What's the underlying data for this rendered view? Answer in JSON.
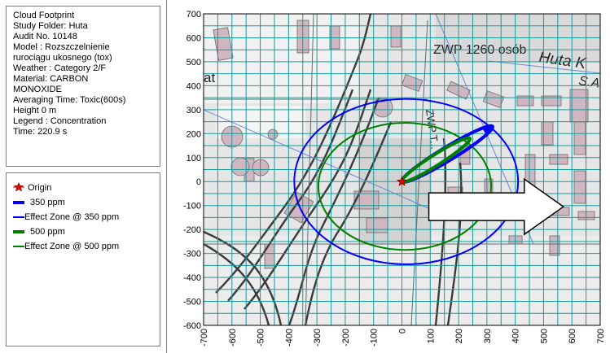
{
  "info": {
    "lines": [
      "Cloud Footprint",
      "Study Folder: Huta",
      "Audit No. 10148",
      "Model : Rozszczelnienie",
      "rurociągu ukosnego (tox)",
      "Weather : Category 2/F",
      "Material: CARBON",
      "MONOXIDE",
      "Averaging Time: Toxic(600s)",
      "Height 0 m",
      "Legend : Concentration",
      "Time: 220.9 s"
    ]
  },
  "legend": {
    "items": [
      {
        "label": "Origin",
        "kind": "origin",
        "color": "#e00000"
      },
      {
        "label": "350 ppm",
        "kind": "thick",
        "color": "#0000ff"
      },
      {
        "label": "Effect Zone @ 350 ppm",
        "kind": "thin",
        "color": "#0000ff"
      },
      {
        "label": "500 ppm",
        "kind": "thick",
        "color": "#008000"
      },
      {
        "label": "Effect Zone @ 500 ppm",
        "kind": "thin",
        "color": "#008000"
      }
    ]
  },
  "map_labels": {
    "zwp": "ZWP  1260  osób",
    "huta": "Huta K",
    "sa": "S.A",
    "at": "at",
    "zwp_vertical": "ZWP T..."
  },
  "chart_data": {
    "type": "scatter",
    "xlim": [
      -700,
      700
    ],
    "ylim": [
      -600,
      700
    ],
    "x_ticks": [
      -700,
      -600,
      -500,
      -400,
      -300,
      -200,
      -100,
      0,
      100,
      200,
      300,
      400,
      500,
      600,
      700
    ],
    "y_ticks": [
      700,
      600,
      500,
      400,
      300,
      200,
      100,
      0,
      -100,
      -200,
      -300,
      -400,
      -500,
      -600
    ],
    "grid": true,
    "origin": {
      "x": 0,
      "y": 0
    },
    "effect_zones": [
      {
        "name": "Effect Zone @ 350 ppm",
        "center": [
          15,
          0
        ],
        "rx": 395,
        "ry": 345,
        "color": "#0000ff"
      },
      {
        "name": "Effect Zone @ 500 ppm",
        "center": [
          10,
          -20
        ],
        "rx": 305,
        "ry": 265,
        "color": "#008000"
      }
    ],
    "clouds": [
      {
        "name": "350 ppm",
        "from": [
          0,
          0
        ],
        "to": [
          320,
          230
        ],
        "half_width": 28,
        "color": "#0000ff"
      },
      {
        "name": "500 ppm",
        "from": [
          0,
          0
        ],
        "to": [
          240,
          180
        ],
        "half_width": 22,
        "color": "#008000"
      }
    ],
    "wind_arrow": {
      "from": [
        95,
        -105
      ],
      "to": [
        570,
        -105
      ]
    }
  }
}
